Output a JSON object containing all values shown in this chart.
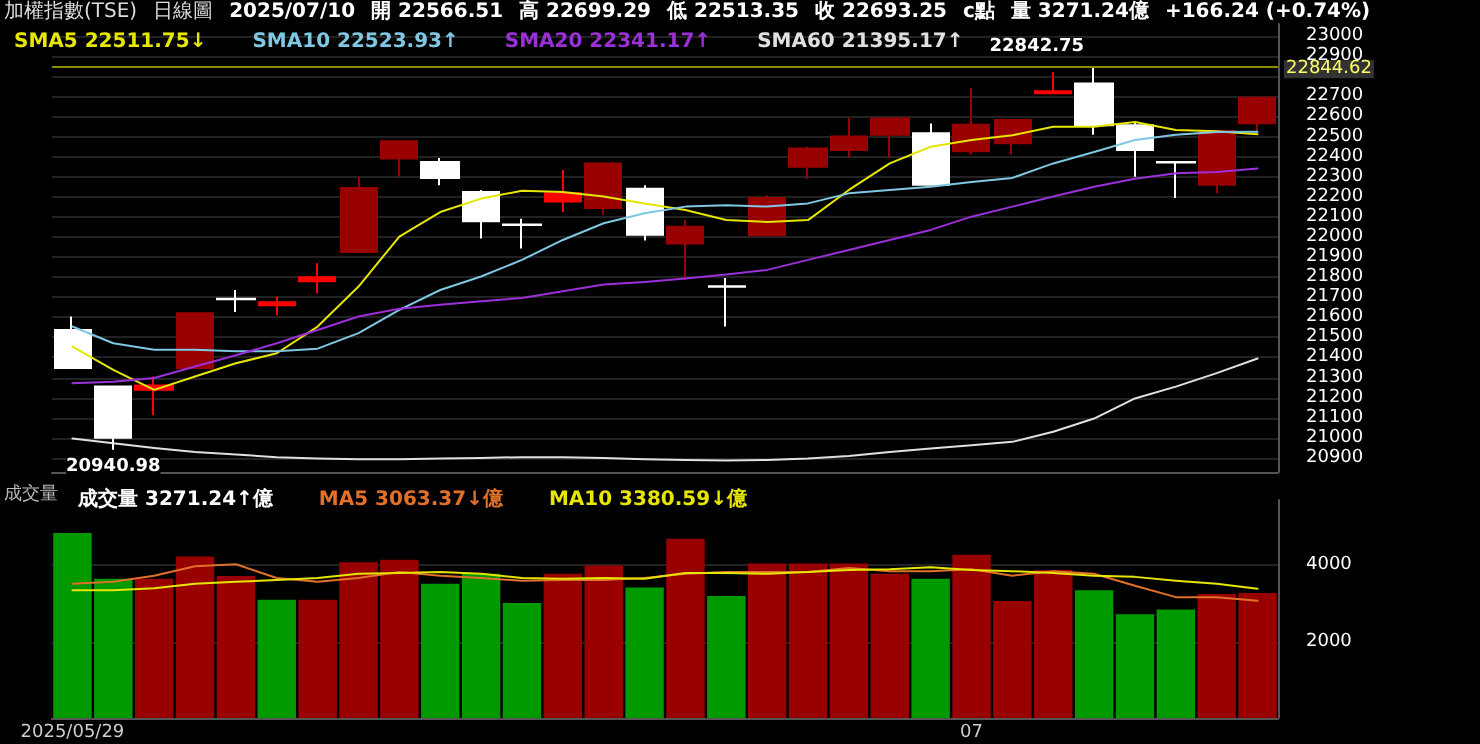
{
  "chart_data": [
    {
      "type": "candlestick",
      "title": "加權指數(TSE)",
      "subtitle": "日線圖",
      "annotations": [
        "2025/07/10",
        "開 22566.51",
        "高 22699.29",
        "低 22513.35",
        "收 22693.25",
        "c點",
        "量 3271.24億",
        "+166.24 (+0.74%)",
        {
          "text": "22842.75",
          "y": 22842.75
        },
        {
          "text": "20940.98",
          "y": 20940.98
        }
      ],
      "categories": [
        null,
        null,
        null,
        null,
        null,
        null,
        null,
        null,
        null,
        null,
        null,
        null,
        null,
        null,
        null,
        null,
        null,
        null,
        null,
        null,
        null,
        null,
        null,
        null,
        null,
        null,
        null,
        null,
        null,
        null
      ],
      "ohlc": [
        [
          21537,
          21604,
          21348,
          21348
        ],
        [
          21255,
          21255,
          20940.98,
          21000
        ],
        [
          21240,
          21305,
          21113,
          21260
        ],
        [
          21348,
          21620,
          21348,
          21620
        ],
        [
          21693,
          21736,
          21627,
          21690
        ],
        [
          21660,
          21703,
          21610,
          21675
        ],
        [
          21780,
          21869,
          21720,
          21800
        ],
        [
          21925,
          22300,
          21925,
          22244
        ],
        [
          22390,
          22476,
          22300,
          22476
        ],
        [
          22373,
          22393,
          22257,
          22293
        ],
        [
          22224,
          22234,
          21992,
          22078
        ],
        [
          22062,
          22091,
          21942,
          22060
        ],
        [
          22177,
          22333,
          22124,
          22217
        ],
        [
          22144,
          22366,
          22111,
          22366
        ],
        [
          22240,
          22257,
          21982,
          22011
        ],
        [
          21968,
          22085,
          21786,
          22051
        ],
        [
          21755,
          21796,
          21554,
          21752
        ],
        [
          22008,
          22207,
          22008,
          22194
        ],
        [
          22350,
          22449,
          22290,
          22440
        ],
        [
          22433,
          22592,
          22396,
          22500
        ],
        [
          22509,
          22589,
          22396,
          22589
        ],
        [
          22516,
          22565,
          22260,
          22260
        ],
        [
          22426,
          22742,
          22410,
          22559
        ],
        [
          22466,
          22582,
          22410,
          22582
        ],
        [
          22715,
          22821,
          22715,
          22725
        ],
        [
          22764,
          22842.75,
          22509,
          22556
        ],
        [
          22556,
          22575,
          22300,
          22433
        ],
        [
          22373,
          22373,
          22194,
          22370
        ],
        [
          22260,
          22527,
          22217,
          22527
        ],
        [
          22566.51,
          22699.29,
          22513.35,
          22693.25
        ]
      ],
      "colors": [
        "#ffffff",
        "#ffffff",
        "#ff0000",
        "#990000",
        "#ffffff",
        "#ff0000",
        "#ff0000",
        "#990000",
        "#990000",
        "#ffffff",
        "#ffffff",
        "#ffffff",
        "#ff0000",
        "#990000",
        "#ffffff",
        "#990000",
        "#ffffff",
        "#990000",
        "#990000",
        "#990000",
        "#990000",
        "#ffffff",
        "#990000",
        "#990000",
        "#ff0000",
        "#ffffff",
        "#ffffff",
        "#ffffff",
        "#990000",
        "#990000"
      ],
      "series": [
        {
          "name": "SMA5 22511.75↓",
          "type": "line",
          "color": "#e6e600",
          "values": [
            21454,
            21338,
            21239,
            21305,
            21371,
            21421,
            21554,
            21753,
            22002,
            22124,
            22191,
            22230,
            22224,
            22201,
            22167,
            22134,
            22084,
            22075,
            22084,
            22234,
            22366,
            22449,
            22483,
            22506,
            22549,
            22549,
            22572,
            22532,
            22526,
            22511.75
          ]
        },
        {
          "name": "SMA10 22523.93↑",
          "type": "line",
          "color": "#7ec8e3",
          "values": [
            21554,
            21471,
            21438,
            21438,
            21431,
            21431,
            21444,
            21521,
            21637,
            21736,
            21803,
            21886,
            21985,
            22068,
            22118,
            22151,
            22158,
            22151,
            22167,
            22217,
            22234,
            22250,
            22274,
            22294,
            22366,
            22423,
            22483,
            22509,
            22522,
            22523.93
          ]
        },
        {
          "name": "SMA20 22341.17↑",
          "type": "line",
          "color": "#9b30d9",
          "values": [
            21272,
            21279,
            21298,
            21355,
            21411,
            21471,
            21537,
            21604,
            21643,
            21663,
            21680,
            21696,
            21730,
            21763,
            21776,
            21793,
            21813,
            21836,
            21886,
            21935,
            21985,
            22035,
            22101,
            22151,
            22201,
            22250,
            22290,
            22317,
            22323,
            22341.17
          ]
        },
        {
          "name": "SMA60 21395.17↑",
          "type": "line",
          "color": "#e0e0e0",
          "values": [
            20997,
            20973,
            20950,
            20930,
            20917,
            20904,
            20897,
            20894,
            20894,
            20897,
            20900,
            20904,
            20904,
            20900,
            20894,
            20890,
            20887,
            20890,
            20897,
            20910,
            20930,
            20947,
            20963,
            20980,
            21030,
            21096,
            21196,
            21255,
            21322,
            21395.17
          ]
        }
      ],
      "ylim": [
        20830,
        23060
      ],
      "yticks": [
        20900,
        21000,
        21100,
        21200,
        21300,
        21400,
        21500,
        21600,
        21700,
        21800,
        21900,
        22000,
        22100,
        22200,
        22300,
        22400,
        22500,
        22600,
        22700,
        {
          "value": 22800,
          "label": null
        },
        22900,
        23000
      ],
      "ref_lines": [
        {
          "axis": "y",
          "value": 22844.62,
          "label": "22844.62",
          "color": "#8c8c00"
        }
      ],
      "grid": "y",
      "legend": "top left",
      "tick_labels": "y",
      "marker": "none"
    },
    {
      "type": "bar",
      "title": "成交量",
      "categories": [
        "2025/05/29",
        null,
        null,
        null,
        null,
        null,
        null,
        null,
        null,
        null,
        null,
        null,
        null,
        null,
        null,
        null,
        null,
        null,
        null,
        null,
        null,
        null,
        "07",
        null,
        null,
        null,
        null,
        null,
        null,
        null
      ],
      "series": [
        {
          "name": "成交量 3271.24↑億",
          "type": "bar",
          "colors": [
            "#009900",
            "#009900",
            "#990000",
            "#990000",
            "#990000",
            "#009900",
            "#990000",
            "#990000",
            "#990000",
            "#009900",
            "#009900",
            "#009900",
            "#990000",
            "#990000",
            "#009900",
            "#990000",
            "#009900",
            "#990000",
            "#990000",
            "#990000",
            "#990000",
            "#009900",
            "#990000",
            "#990000",
            "#990000",
            "#009900",
            "#009900",
            "#009900",
            "#990000",
            "#990000"
          ],
          "values": [
            4840,
            3640,
            3640,
            4220,
            3710,
            3090,
            3090,
            4070,
            4140,
            3510,
            3770,
            3010,
            3770,
            3990,
            3410,
            4690,
            3190,
            4040,
            4040,
            4040,
            3770,
            3640,
            4270,
            3060,
            3870,
            3340,
            2710,
            2840,
            3240,
            3271.24
          ]
        },
        {
          "name": "MA5 3063.37↓億",
          "type": "line",
          "color": "#e0702a",
          "values": [
            3510,
            3560,
            3720,
            3970,
            4020,
            3660,
            3560,
            3660,
            3820,
            3720,
            3660,
            3590,
            3610,
            3610,
            3660,
            3770,
            3820,
            3820,
            3820,
            3920,
            3840,
            3840,
            3890,
            3720,
            3840,
            3770,
            3460,
            3160,
            3160,
            3063.37
          ]
        },
        {
          "name": "MA10 3380.59↓億",
          "type": "line",
          "color": "#e6e600",
          "values": [
            3340,
            3340,
            3390,
            3510,
            3560,
            3610,
            3660,
            3770,
            3790,
            3820,
            3770,
            3660,
            3640,
            3660,
            3640,
            3790,
            3790,
            3770,
            3820,
            3870,
            3890,
            3940,
            3870,
            3840,
            3790,
            3720,
            3690,
            3590,
            3510,
            3380.59
          ]
        }
      ],
      "ylim": [
        0,
        5700
      ],
      "yticks": [
        2000,
        4000
      ],
      "grid": "y",
      "legend": "top left",
      "marker": "none"
    }
  ]
}
